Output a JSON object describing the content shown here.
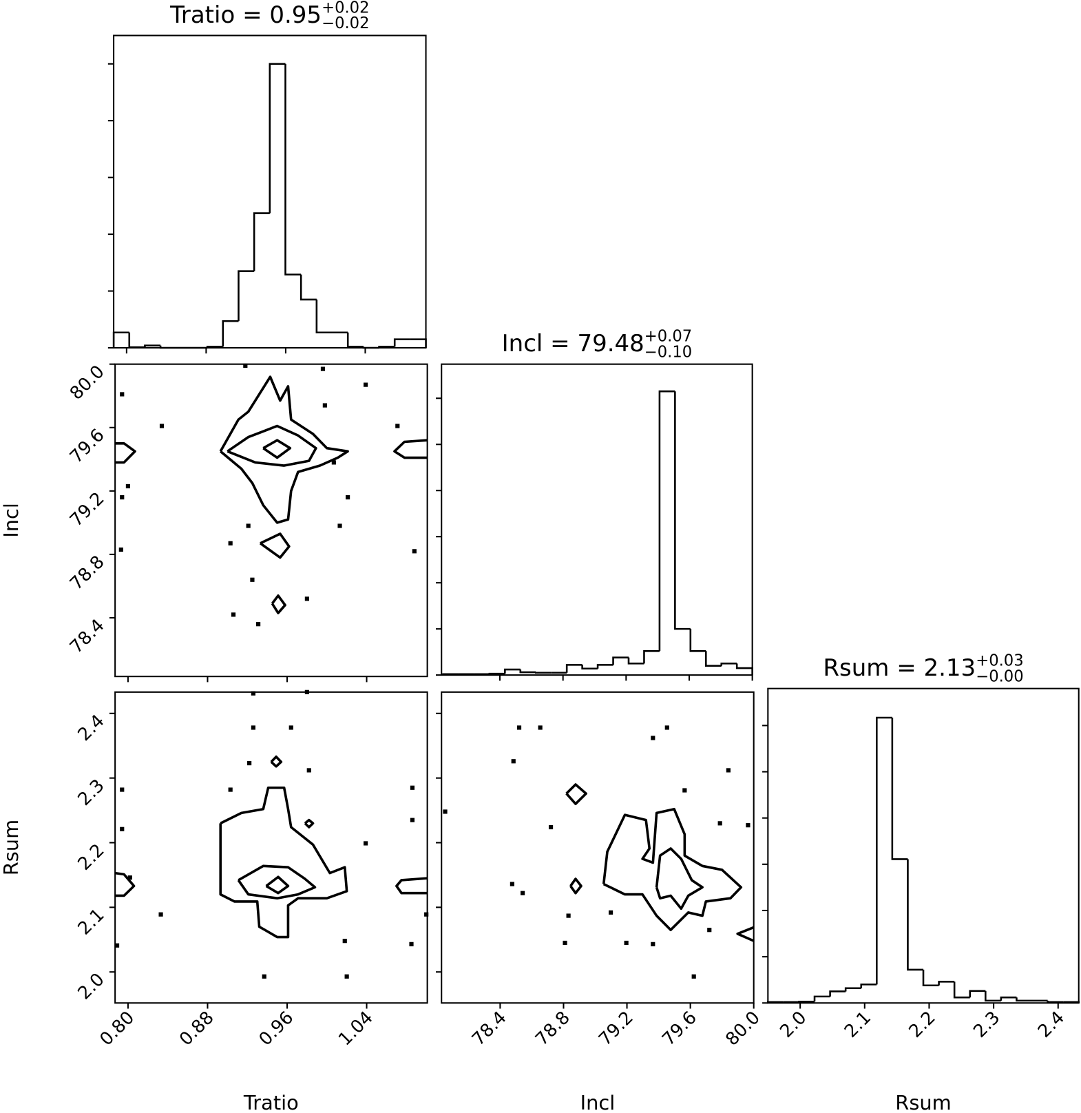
{
  "chart_data": [
    {
      "type": "histogram",
      "title": "Tratio = 0.95",
      "title_upper": "+0.02",
      "title_lower": "−0.02",
      "bins": [
        0.787,
        0.8027,
        0.8184,
        0.8341,
        0.8498,
        0.8655,
        0.8812,
        0.8969,
        0.9126,
        0.9283,
        0.944,
        0.9597,
        0.9754,
        0.9911,
        1.0068,
        1.0225,
        1.0382,
        1.0539,
        1.0696,
        1.0853,
        1.101
      ],
      "values": [
        0.27,
        0.01,
        0.04,
        0,
        0,
        0,
        0.02,
        0.47,
        1.35,
        2.37,
        5.0,
        1.29,
        0.85,
        0.27,
        0.27,
        0.02,
        0,
        0.02,
        0.15,
        0.15
      ],
      "xlim": [
        0.787,
        1.101
      ],
      "ylim": [
        0,
        5.5
      ],
      "xticks": [
        0.8,
        0.88,
        0.96,
        1.04
      ],
      "yticks": [
        0,
        1,
        2,
        3,
        4,
        5
      ],
      "color": "#000000"
    },
    {
      "type": "contour",
      "ylabel": "Incl",
      "xlim": [
        0.787,
        1.101
      ],
      "ylim": [
        78.03,
        80.0
      ],
      "xticks": [
        0.8,
        0.88,
        0.96,
        1.04
      ],
      "yticks": [
        78.4,
        78.8,
        79.2,
        79.6,
        {
          "value": 80.0,
          "label": "80.0"
        }
      ],
      "color": "#000000",
      "points": {
        "x": [
          0.918,
          0.996,
          1.039,
          0.794,
          0.834,
          0.794,
          0.8,
          0.903,
          0.921,
          1.013,
          1.088,
          0.793,
          0.925,
          0.98,
          0.906,
          0.931,
          0.998,
          1.007,
          1.021,
          1.071
        ],
        "y": [
          79.99,
          79.97,
          79.87,
          79.81,
          79.61,
          79.16,
          79.23,
          78.87,
          78.98,
          78.98,
          78.82,
          78.83,
          78.64,
          78.52,
          78.42,
          78.36,
          79.74,
          79.38,
          79.16,
          79.61
        ]
      },
      "contours": [
        {
          "x": [
            0.893,
            0.911,
            0.921,
            0.943,
            0.953,
            0.961,
            0.964,
            0.986,
            1.0,
            1.021,
            1.011,
            0.993,
            0.971,
            0.964,
            0.961,
            0.95,
            0.936,
            0.925,
            0.914,
            0.893
          ],
          "y": [
            79.45,
            79.65,
            79.7,
            79.92,
            79.77,
            79.86,
            79.65,
            79.56,
            79.47,
            79.45,
            79.41,
            79.36,
            79.32,
            79.2,
            79.02,
            79.0,
            79.11,
            79.25,
            79.34,
            79.45
          ]
        },
        {
          "x": [
            0.9,
            0.921,
            0.95,
            0.971,
            0.989,
            0.982,
            0.957,
            0.928,
            0.9
          ],
          "y": [
            79.45,
            79.54,
            79.61,
            79.55,
            79.47,
            79.39,
            79.36,
            79.38,
            79.45
          ]
        },
        {
          "x": [
            0.936,
            0.95,
            0.963,
            0.95,
            0.936
          ],
          "y": [
            79.47,
            79.52,
            79.47,
            79.41,
            79.47
          ]
        },
        {
          "x": [
            0.933,
            0.953,
            0.962,
            0.953,
            0.933
          ],
          "y": [
            78.87,
            78.93,
            78.85,
            78.78,
            78.87
          ]
        },
        {
          "x": [
            0.945,
            0.951,
            0.958,
            0.951,
            0.945
          ],
          "y": [
            78.49,
            78.54,
            78.48,
            78.43,
            78.49
          ]
        },
        {
          "x": [
            0.787,
            0.796,
            0.807,
            0.796,
            0.787
          ],
          "y": [
            79.5,
            79.5,
            79.45,
            79.38,
            79.38
          ]
        },
        {
          "x": [
            1.101,
            1.078,
            1.068,
            1.078,
            1.101
          ],
          "y": [
            79.52,
            79.51,
            79.45,
            79.41,
            79.41
          ]
        }
      ]
    },
    {
      "type": "histogram",
      "title": "Incl = 79.48",
      "title_upper": "+0.07",
      "title_lower": "−0.10",
      "bins": [
        78.04,
        78.138,
        78.236,
        78.334,
        78.432,
        78.53,
        78.628,
        78.726,
        78.824,
        78.922,
        79.02,
        79.118,
        79.216,
        79.314,
        79.412,
        79.51,
        79.608,
        79.706,
        79.804,
        79.902,
        80.0
      ],
      "values": [
        0.02,
        0.02,
        0.02,
        0.03,
        0.12,
        0.06,
        0.05,
        0.05,
        0.22,
        0.14,
        0.22,
        0.38,
        0.25,
        0.52,
        6.15,
        1.0,
        0.52,
        0.2,
        0.25,
        0.15
      ],
      "xlim": [
        78.03,
        80.0
      ],
      "ylim": [
        0,
        6.74
      ],
      "xticks": [
        78.4,
        78.8,
        79.2,
        79.6,
        80
      ],
      "yticks": [
        0,
        1,
        2,
        3,
        4,
        5,
        6
      ],
      "color": "#000000"
    },
    {
      "type": "contour",
      "xlabel": "Tratio",
      "ylabel": "Rsum",
      "xlim": [
        0.787,
        1.101
      ],
      "ylim": [
        1.952,
        2.433
      ],
      "xticks": [
        {
          "value": 0.8,
          "label": "0.80"
        },
        0.88,
        0.96,
        1.04
      ],
      "yticks": [
        {
          "value": 2.0,
          "label": "2.0"
        },
        2.1,
        2.2,
        2.3,
        2.4
      ],
      "color": "#000000",
      "points": {
        "x": [
          0.926,
          0.926,
          0.964,
          0.98,
          0.922,
          0.982,
          0.903,
          0.794,
          0.794,
          1.086,
          1.086,
          1.039,
          0.802,
          0.833,
          0.789,
          1.085,
          1.018,
          1.02,
          0.937,
          1.1
        ],
        "y": [
          2.431,
          2.378,
          2.378,
          2.433,
          2.323,
          2.312,
          2.282,
          2.221,
          2.282,
          2.285,
          2.235,
          2.199,
          2.146,
          2.089,
          2.041,
          2.043,
          2.048,
          1.993,
          1.993,
          2.089
        ]
      },
      "contours": [
        {
          "x": [
            0.893,
            0.914,
            0.936,
            0.941,
            0.957,
            0.961,
            0.964,
            0.986,
            1.003,
            1.018,
            1.02,
            1.0,
            0.971,
            0.961,
            0.961,
            0.95,
            0.932,
            0.93,
            0.907,
            0.893,
            0.893
          ],
          "y": [
            2.23,
            2.246,
            2.252,
            2.285,
            2.285,
            2.252,
            2.224,
            2.197,
            2.153,
            2.162,
            2.125,
            2.114,
            2.114,
            2.103,
            2.054,
            2.054,
            2.07,
            2.109,
            2.109,
            2.12,
            2.23
          ]
        },
        {
          "x": [
            0.911,
            0.936,
            0.961,
            0.978,
            0.988,
            0.971,
            0.95,
            0.921,
            0.911
          ],
          "y": [
            2.142,
            2.164,
            2.162,
            2.144,
            2.131,
            2.12,
            2.114,
            2.12,
            2.142
          ]
        },
        {
          "x": [
            0.939,
            0.951,
            0.961,
            0.951,
            0.939
          ],
          "y": [
            2.133,
            2.147,
            2.133,
            2.122,
            2.133
          ]
        },
        {
          "x": [
            0.944,
            0.949,
            0.954,
            0.949,
            0.944
          ],
          "y": [
            2.325,
            2.333,
            2.325,
            2.318,
            2.325
          ]
        },
        {
          "x": [
            0.978,
            0.982,
            0.986,
            0.982,
            0.978
          ],
          "y": [
            2.23,
            2.235,
            2.23,
            2.224,
            2.23
          ]
        },
        {
          "x": [
            0.787,
            0.796,
            0.806,
            0.796,
            0.787
          ],
          "y": [
            2.153,
            2.151,
            2.133,
            2.118,
            2.118
          ]
        },
        {
          "x": [
            1.101,
            1.075,
            1.07,
            1.075,
            1.101
          ],
          "y": [
            2.145,
            2.142,
            2.133,
            2.122,
            2.122
          ]
        }
      ]
    },
    {
      "type": "contour",
      "xlabel": "Incl",
      "xlim": [
        78.03,
        80.0
      ],
      "ylim": [
        1.952,
        2.433
      ],
      "xticks": [
        78.4,
        78.8,
        79.2,
        79.6,
        {
          "value": 80.0,
          "label": "80.0"
        }
      ],
      "yticks": [
        2.0,
        2.1,
        2.2,
        2.3,
        2.4
      ],
      "color": "#000000",
      "points": {
        "x": [
          78.484,
          78.52,
          78.653,
          78.053,
          78.72,
          78.476,
          78.542,
          78.831,
          78.809,
          79.453,
          79.364,
          79.84,
          79.964,
          79.787,
          79.196,
          79.364,
          79.622,
          79.72,
          79.098,
          79.564
        ],
        "y": [
          2.326,
          2.378,
          2.378,
          2.248,
          2.224,
          2.136,
          2.122,
          2.087,
          2.045,
          2.378,
          2.362,
          2.312,
          2.227,
          2.23,
          2.045,
          2.043,
          1.993,
          2.065,
          2.092,
          2.281
        ]
      },
      "contours": [
        {
          "x": [
            79.053,
            79.076,
            79.187,
            79.32,
            79.342,
            79.298,
            79.364,
            79.387,
            79.498,
            79.564,
            79.564,
            79.676,
            79.8,
            79.92,
            79.853,
            79.698,
            79.676,
            79.587,
            79.476,
            79.387,
            79.298,
            79.187,
            79.053
          ],
          "y": [
            2.136,
            2.186,
            2.243,
            2.235,
            2.191,
            2.175,
            2.169,
            2.246,
            2.252,
            2.213,
            2.18,
            2.164,
            2.158,
            2.131,
            2.114,
            2.109,
            2.087,
            2.092,
            2.065,
            2.087,
            2.12,
            2.12,
            2.136
          ]
        },
        {
          "x": [
            79.387,
            79.409,
            79.476,
            79.542,
            79.609,
            79.676,
            79.587,
            79.542,
            79.476,
            79.409,
            79.387
          ],
          "y": [
            2.131,
            2.18,
            2.191,
            2.175,
            2.142,
            2.131,
            2.118,
            2.098,
            2.118,
            2.114,
            2.131
          ]
        },
        {
          "x": [
            78.818,
            78.876,
            78.942,
            78.876,
            78.818
          ],
          "y": [
            2.276,
            2.29,
            2.276,
            2.26,
            2.276
          ]
        },
        {
          "x": [
            78.844,
            78.876,
            78.911,
            78.876,
            78.844
          ],
          "y": [
            2.133,
            2.144,
            2.133,
            2.122,
            2.133
          ]
        },
        {
          "x": [
            80.0,
            79.898,
            80.0
          ],
          "y": [
            2.069,
            2.059,
            2.048
          ]
        }
      ]
    },
    {
      "type": "histogram",
      "title": "Rsum = 2.13",
      "title_upper": "+0.03",
      "title_lower": "−0.00",
      "xlabel": "Rsum",
      "bins": [
        1.95,
        1.9741,
        1.9982,
        2.0223,
        2.0464,
        2.0705,
        2.0946,
        2.1187,
        2.1428,
        2.1669,
        2.191,
        2.2151,
        2.2392,
        2.2633,
        2.2874,
        2.3115,
        2.3356,
        2.3597,
        2.3838,
        2.4079,
        2.432
      ],
      "values": [
        0.02,
        0.02,
        0.03,
        0.14,
        0.25,
        0.32,
        0.4,
        6.17,
        3.11,
        0.72,
        0.38,
        0.46,
        0.12,
        0.26,
        0.05,
        0.12,
        0.05,
        0.05,
        0.02,
        0.02
      ],
      "xlim": [
        1.95,
        2.432
      ],
      "ylim": [
        0,
        6.8
      ],
      "xticks": [
        {
          "value": 2.0,
          "label": "2.0"
        },
        2.1,
        2.2,
        2.3,
        2.4
      ],
      "yticks": [
        0,
        1,
        2,
        3,
        4,
        5,
        6
      ],
      "color": "#000000"
    }
  ]
}
